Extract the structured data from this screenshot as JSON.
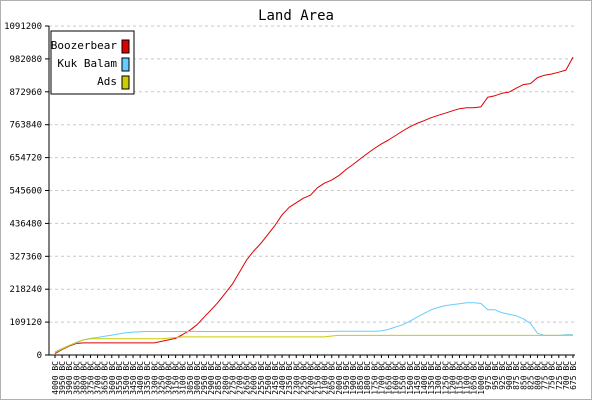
{
  "chart_data": {
    "type": "line",
    "title": "Land Area",
    "xlabel": "",
    "ylabel": "",
    "ylim": [
      0,
      1091200
    ],
    "y_ticks": [
      "0",
      "109120",
      "218240",
      "327360",
      "436480",
      "545600",
      "654720",
      "763840",
      "872960",
      "982080",
      "1091200"
    ],
    "grid": "horizontal-dashed",
    "legend_position": "top-left",
    "categories": [
      "4000 BC",
      "3950 BC",
      "3900 BC",
      "3850 BC",
      "3800 BC",
      "3750 BC",
      "3700 BC",
      "3650 BC",
      "3600 BC",
      "3550 BC",
      "3500 BC",
      "3450 BC",
      "3400 BC",
      "3350 BC",
      "3300 BC",
      "3250 BC",
      "3200 BC",
      "3150 BC",
      "3100 BC",
      "3050 BC",
      "3000 BC",
      "2950 BC",
      "2900 BC",
      "2850 BC",
      "2800 BC",
      "2750 BC",
      "2700 BC",
      "2650 BC",
      "2600 BC",
      "2550 BC",
      "2500 BC",
      "2450 BC",
      "2400 BC",
      "2350 BC",
      "2300 BC",
      "2250 BC",
      "2200 BC",
      "2150 BC",
      "2100 BC",
      "2050 BC",
      "2000 BC",
      "1950 BC",
      "1900 BC",
      "1850 BC",
      "1800 BC",
      "1750 BC",
      "1700 BC",
      "1650 BC",
      "1600 BC",
      "1550 BC",
      "1500 BC",
      "1450 BC",
      "1400 BC",
      "1350 BC",
      "1300 BC",
      "1250 BC",
      "1200 BC",
      "1150 BC",
      "1100 BC",
      "1050 BC",
      "1000 BC",
      "975 BC",
      "950 BC",
      "925 BC",
      "900 BC",
      "875 BC",
      "850 BC",
      "825 BC",
      "800 BC",
      "775 BC",
      "750 BC",
      "725 BC",
      "700 BC",
      "675 BC"
    ],
    "series": [
      {
        "name": "Boozerbear",
        "color": "#dd0000",
        "values": [
          5000,
          18000,
          30000,
          38000,
          40000,
          40000,
          40000,
          40000,
          40000,
          40000,
          40000,
          40000,
          40000,
          40000,
          40000,
          45000,
          50000,
          55000,
          68000,
          82000,
          100000,
          125000,
          150000,
          175000,
          205000,
          235000,
          275000,
          315000,
          345000,
          370000,
          400000,
          430000,
          465000,
          490000,
          505000,
          520000,
          530000,
          555000,
          570000,
          580000,
          595000,
          615000,
          632000,
          650000,
          668000,
          685000,
          700000,
          713000,
          728000,
          743000,
          757000,
          768000,
          777000,
          787000,
          795000,
          802000,
          810000,
          817000,
          820000,
          820000,
          823000,
          855000,
          860000,
          868000,
          872000,
          885000,
          897000,
          900000,
          920000,
          928000,
          932000,
          938000,
          945000,
          988000
        ]
      },
      {
        "name": "Kuk Balam",
        "color": "#66ccff",
        "values": [
          10000,
          22000,
          32000,
          40000,
          50000,
          55000,
          58000,
          62000,
          66000,
          70000,
          74000,
          76000,
          77000,
          78000,
          78000,
          78000,
          78000,
          78000,
          78000,
          78000,
          78000,
          78000,
          78000,
          78000,
          78000,
          78000,
          78000,
          78000,
          78000,
          78000,
          78000,
          78000,
          78000,
          78000,
          78000,
          78000,
          78000,
          78000,
          78000,
          78000,
          79000,
          79000,
          79000,
          79000,
          79000,
          79000,
          80000,
          85000,
          93000,
          100000,
          112000,
          125000,
          138000,
          150000,
          158000,
          164000,
          167000,
          170000,
          173000,
          173000,
          171000,
          150000,
          150000,
          140000,
          135000,
          130000,
          120000,
          105000,
          72000,
          65000,
          65000,
          65000,
          67000,
          67000
        ]
      },
      {
        "name": "Ads",
        "color": "#cccc00",
        "values": [
          8000,
          20000,
          32000,
          42000,
          50000,
          54000,
          54000,
          54000,
          54000,
          54000,
          54000,
          54000,
          54000,
          54000,
          54000,
          54000,
          56000,
          58000,
          60000,
          60000,
          60000,
          60000,
          60000,
          60000,
          60000,
          60000,
          60000,
          60000,
          60000,
          60000,
          60000,
          60000,
          60000,
          60000,
          60000,
          60000,
          60000,
          60000,
          60000,
          63000,
          65000,
          65000,
          65000,
          65000,
          65000,
          65000,
          65000,
          65000,
          65000,
          65000,
          65000,
          65000,
          65000,
          65000,
          65000,
          65000,
          65000,
          65000,
          65000,
          65000,
          65000,
          65000,
          65000,
          65000,
          65000,
          65000,
          65000,
          65000,
          65000,
          65000,
          65000,
          65000,
          65000,
          65000
        ]
      }
    ]
  }
}
